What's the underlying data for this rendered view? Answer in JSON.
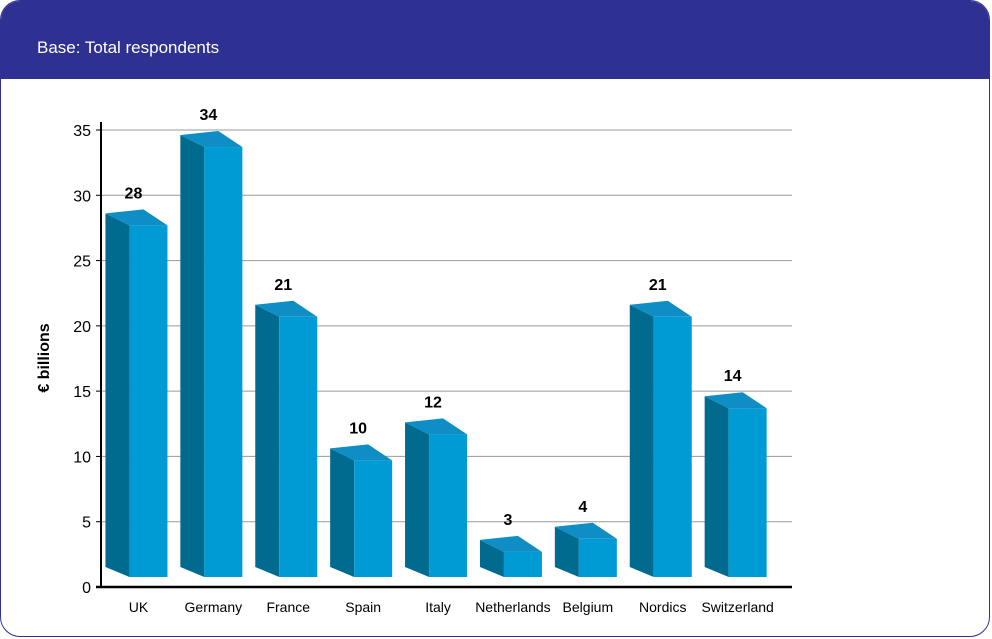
{
  "header": {
    "base_text": "Base: Total respondents"
  },
  "colors": {
    "frame": "#2e3192",
    "bar_front": "#009bd5",
    "bar_side": "#006b8f",
    "bar_top": "#0e8ec4"
  },
  "chart_data": {
    "type": "bar",
    "title": "",
    "xlabel": "",
    "ylabel": "€ billions",
    "ylim": [
      0,
      35
    ],
    "yticks": [
      0,
      5,
      10,
      15,
      20,
      25,
      30,
      35
    ],
    "grid": true,
    "categories": [
      "UK",
      "Germany",
      "France",
      "Spain",
      "Italy",
      "Netherlands",
      "Belgium",
      "Nordics",
      "Switzerland"
    ],
    "values": [
      28,
      34,
      21,
      10,
      12,
      3,
      4,
      21,
      14
    ]
  }
}
